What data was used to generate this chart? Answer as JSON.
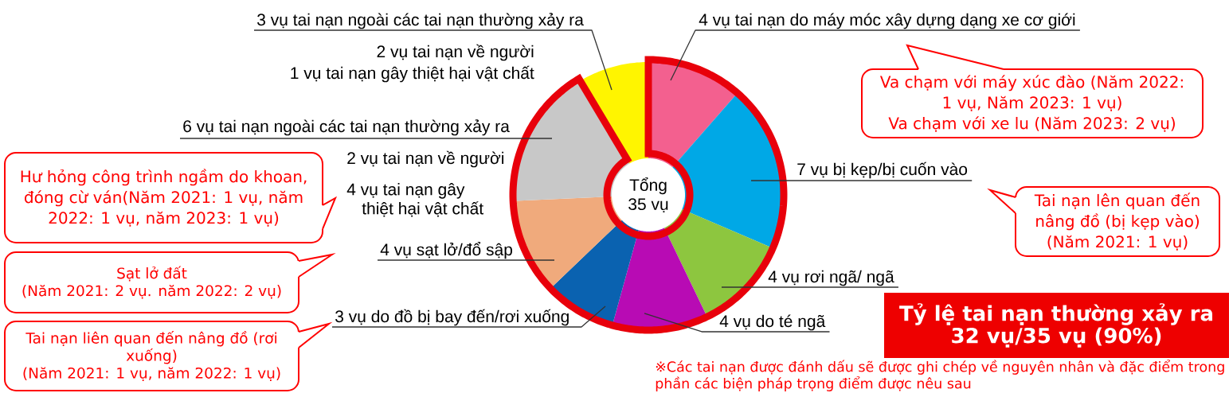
{
  "chart_data": {
    "type": "donut",
    "categories": [
      "4 vụ tai nạn do máy móc xây dựng dạng xe cơ giới",
      "7 vụ bị kẹp/bị cuốn vào",
      "4 vụ rơi ngã/ ngã",
      "4 vụ do té ngã",
      "3 vụ do đồ bị bay đến/rơi xuống",
      "4 vụ sạt lở/đổ sập",
      "6 vụ tai nạn ngoài các tai nạn thường xảy ra",
      "3 vụ tai nạn ngoài các tai nạn thường xảy ra"
    ],
    "values": [
      4,
      7,
      4,
      4,
      3,
      4,
      6,
      3
    ],
    "colors": [
      "#f3608f",
      "#00a8e6",
      "#8dc63f",
      "#b80bb4",
      "#0a62b0",
      "#f0aa7c",
      "#c8c8c8",
      "#fff500"
    ],
    "annotations": [
      "2 vụ tai nạn về người",
      "1 vụ tai nạn gây thiệt hại vật chất",
      "2 vụ tai nạn về người",
      "4 vụ tai nạn gây thiệt hại vật chất",
      "Tổng 35 vụ",
      "Va chạm với máy xúc đào (Năm 2022: 1 vụ, Năm 2023: 1 vụ)",
      "Va chạm với xe lu (Năm 2023: 2 vụ)",
      "Tai nạn lên quan đến nâng đồ (bị kẹp vào)",
      "(Năm 2021: 1 vụ)",
      "Hư hỏng công trình ngầm do khoan, đóng cừ ván(Năm 2021: 1 vụ, năm 2022: 1 vụ, năm 2023: 1 vụ)",
      "Sạt lở đất",
      "(Năm 2021: 2 vụ. năm 2022: 2 vụ)",
      "Tai nạn liên quan đến nâng đồ (rơi xuống)",
      "(Năm 2021: 1 vụ, năm 2022: 1 vụ)",
      "Tỷ lệ tai nạn thường xảy ra 32 vụ/35 vụ (90%)",
      "※Các tai nạn được đánh dấu sẽ được ghi chép về nguyên nhân và đặc điểm trong phần các biện pháp trọng điểm được nêu sau"
    ]
  }
}
